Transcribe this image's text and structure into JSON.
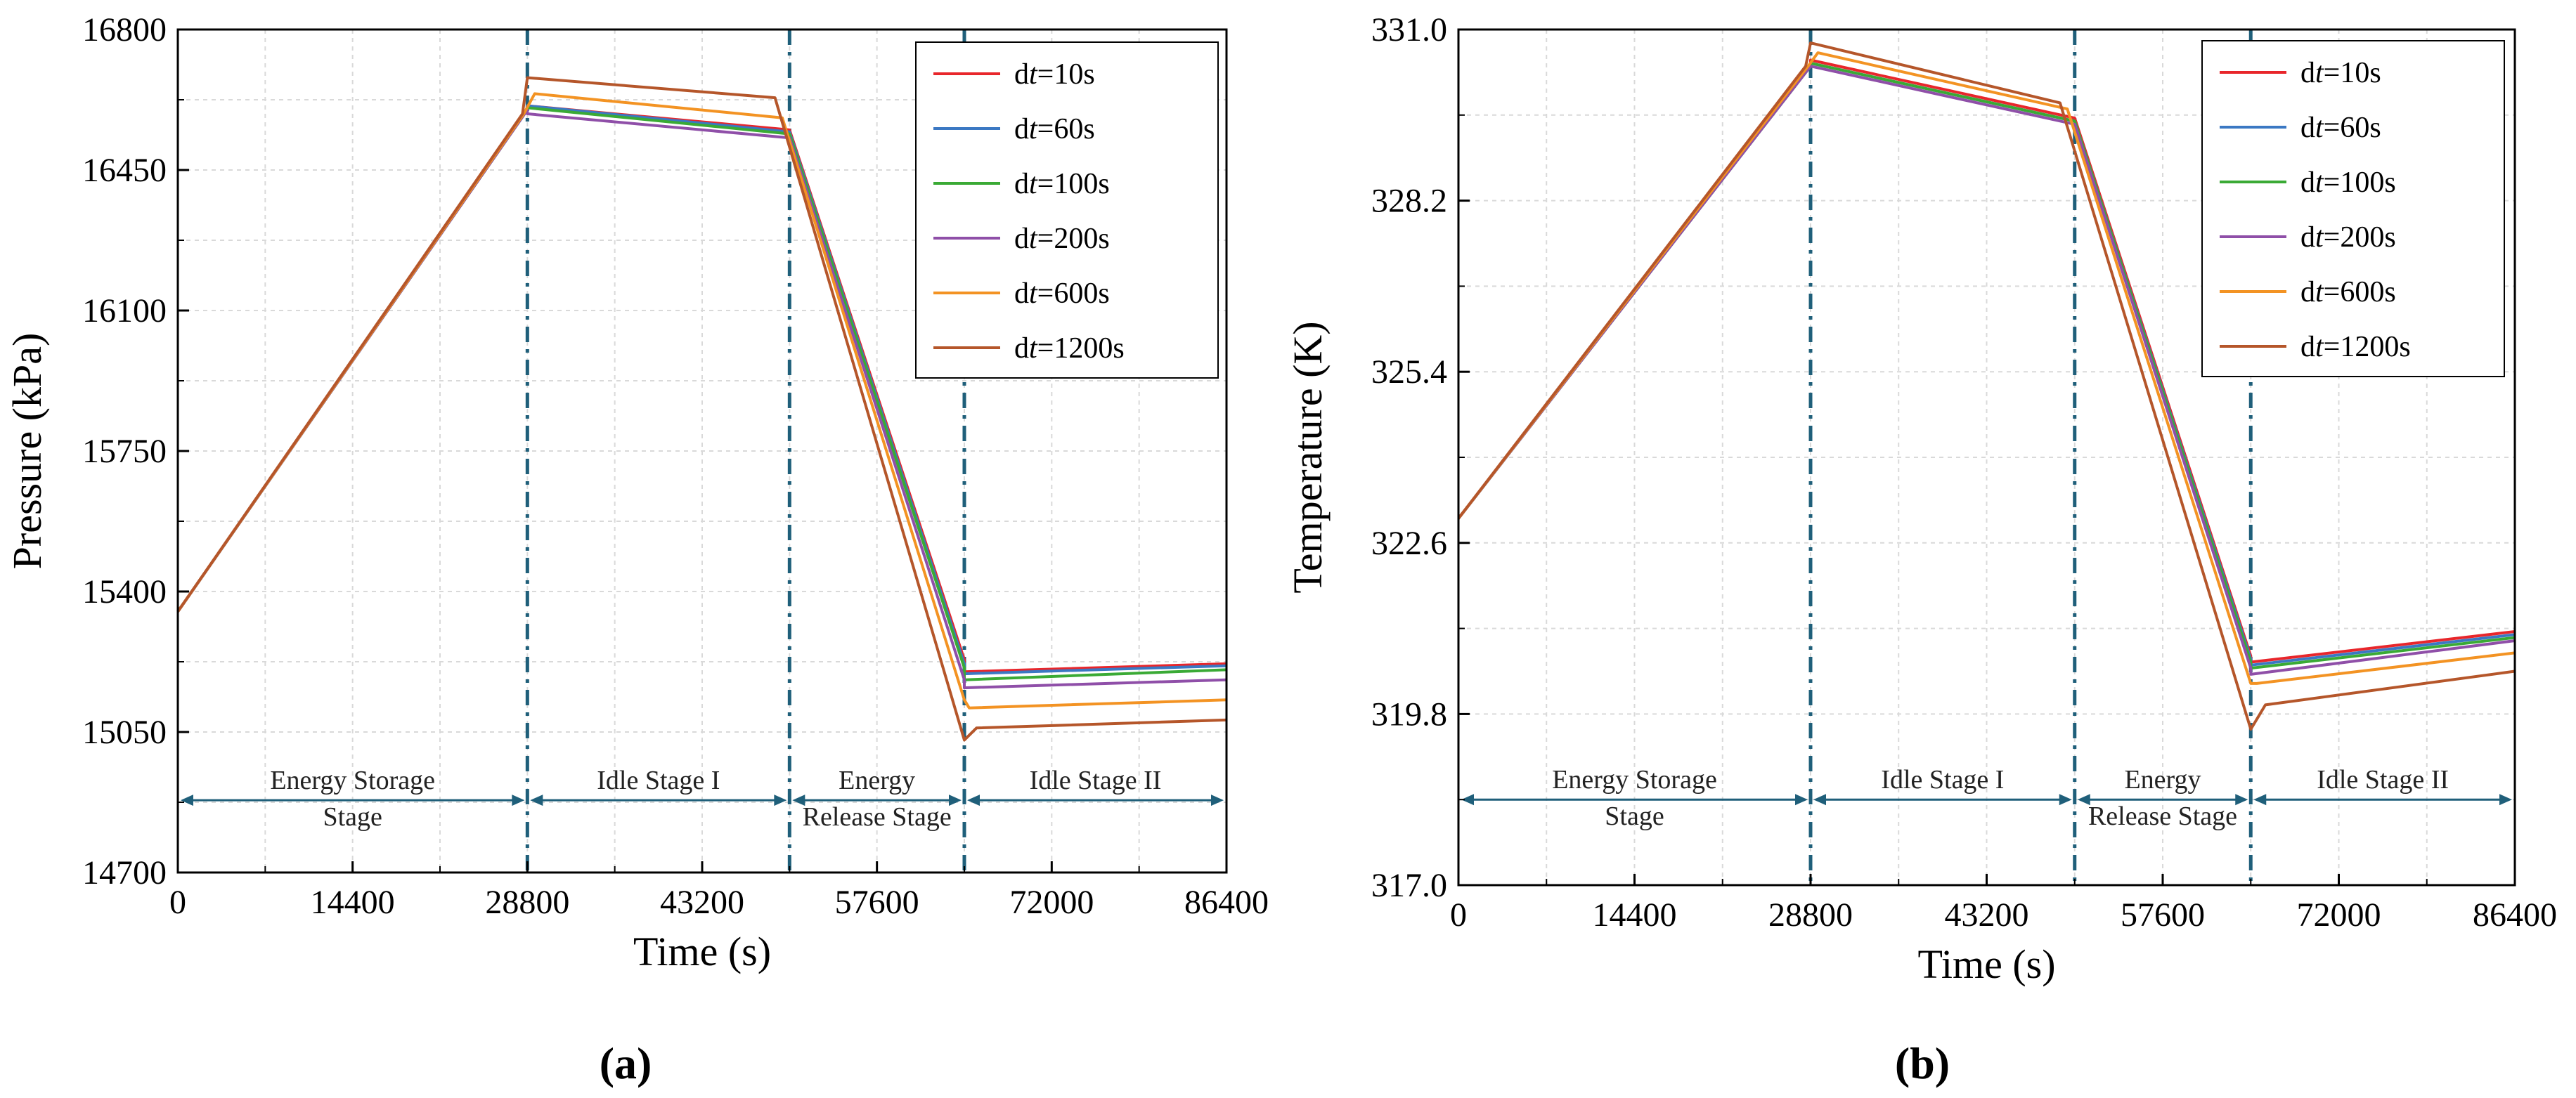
{
  "chart_data": [
    {
      "type": "line",
      "panel_label": "(a)",
      "xlabel": "Time (s)",
      "ylabel": "Pressure (kPa)",
      "xlim": [
        0,
        86400
      ],
      "ylim": [
        14700,
        16800
      ],
      "xticks": [
        "0",
        "14400",
        "28800",
        "43200",
        "57600",
        "72000",
        "86400"
      ],
      "yticks": [
        "14700",
        "15050",
        "15400",
        "15750",
        "16100",
        "16450",
        "16800"
      ],
      "stage_boundaries": [
        28800,
        50400,
        64800
      ],
      "stages": [
        {
          "lines": [
            "Energy Storage",
            "Stage"
          ],
          "x_start": 0,
          "x_end": 28800
        },
        {
          "lines": [
            "Idle Stage I"
          ],
          "x_start": 28800,
          "x_end": 50400
        },
        {
          "lines": [
            "Energy",
            "Release Stage"
          ],
          "x_start": 50400,
          "x_end": 64800
        },
        {
          "lines": [
            "Idle Stage II"
          ],
          "x_start": 64800,
          "x_end": 86400
        }
      ],
      "stage_arrow_y": 14880,
      "legend": {
        "position": "top-right"
      },
      "series": [
        {
          "prefix": "d",
          "var": "t",
          "suffix": "=10s",
          "color": "#e8262b",
          "points": [
            [
              0,
              15350
            ],
            [
              28800,
              16600
            ],
            [
              28800,
              16610
            ],
            [
              50400,
              16550
            ],
            [
              64800,
              15230
            ],
            [
              64800,
              15200
            ],
            [
              86400,
              15220
            ]
          ]
        },
        {
          "prefix": "d",
          "var": "t",
          "suffix": "=60s",
          "color": "#3b78c3",
          "points": [
            [
              0,
              15350
            ],
            [
              28800,
              16600
            ],
            [
              28800,
              16610
            ],
            [
              50400,
              16545
            ],
            [
              64800,
              15220
            ],
            [
              64800,
              15195
            ],
            [
              86400,
              15215
            ]
          ]
        },
        {
          "prefix": "d",
          "var": "t",
          "suffix": "=100s",
          "color": "#3aaa35",
          "points": [
            [
              0,
              15350
            ],
            [
              28800,
              16600
            ],
            [
              28800,
              16605
            ],
            [
              50400,
              16540
            ],
            [
              64800,
              15210
            ],
            [
              64800,
              15180
            ],
            [
              86400,
              15205
            ]
          ]
        },
        {
          "prefix": "d",
          "var": "t",
          "suffix": "=200s",
          "color": "#8f4fa8",
          "points": [
            [
              0,
              15350
            ],
            [
              28800,
              16600
            ],
            [
              28800,
              16590
            ],
            [
              50400,
              16530
            ],
            [
              64800,
              15180
            ],
            [
              64800,
              15160
            ],
            [
              86400,
              15180
            ]
          ]
        },
        {
          "prefix": "d",
          "var": "t",
          "suffix": "=600s",
          "color": "#f39323",
          "points": [
            [
              0,
              15350
            ],
            [
              28500,
              16590
            ],
            [
              29400,
              16640
            ],
            [
              49800,
              16580
            ],
            [
              64800,
              15130
            ],
            [
              65200,
              15110
            ],
            [
              86400,
              15130
            ]
          ]
        },
        {
          "prefix": "d",
          "var": "t",
          "suffix": "=1200s",
          "color": "#b5562a",
          "points": [
            [
              0,
              15350
            ],
            [
              28400,
              16590
            ],
            [
              28800,
              16680
            ],
            [
              49200,
              16630
            ],
            [
              64800,
              15030
            ],
            [
              65800,
              15060
            ],
            [
              86400,
              15080
            ]
          ]
        }
      ]
    },
    {
      "type": "line",
      "panel_label": "(b)",
      "xlabel": "Time (s)",
      "ylabel": "Temperature (K)",
      "xlim": [
        0,
        86400
      ],
      "ylim": [
        317.0,
        331.0
      ],
      "xticks": [
        "0",
        "14400",
        "28800",
        "43200",
        "57600",
        "72000",
        "86400"
      ],
      "yticks": [
        "317.0",
        "319.8",
        "322.6",
        "325.4",
        "328.2",
        "331.0"
      ],
      "stage_boundaries": [
        28800,
        50400,
        64800
      ],
      "stages": [
        {
          "lines": [
            "Energy Storage",
            "Stage"
          ],
          "x_start": 0,
          "x_end": 28800
        },
        {
          "lines": [
            "Idle Stage I"
          ],
          "x_start": 28800,
          "x_end": 50400
        },
        {
          "lines": [
            "Energy",
            "Release Stage"
          ],
          "x_start": 50400,
          "x_end": 64800
        },
        {
          "lines": [
            "Idle Stage II"
          ],
          "x_start": 64800,
          "x_end": 86400
        }
      ],
      "stage_arrow_y": 318.4,
      "legend": {
        "position": "top-right"
      },
      "series": [
        {
          "prefix": "d",
          "var": "t",
          "suffix": "=10s",
          "color": "#e8262b",
          "points": [
            [
              0,
              323.0
            ],
            [
              28800,
              330.4
            ],
            [
              28800,
              330.5
            ],
            [
              50400,
              329.55
            ],
            [
              64800,
              320.75
            ],
            [
              64800,
              320.65
            ],
            [
              86400,
              321.15
            ]
          ]
        },
        {
          "prefix": "d",
          "var": "t",
          "suffix": "=60s",
          "color": "#3b78c3",
          "points": [
            [
              0,
              323.0
            ],
            [
              28800,
              330.4
            ],
            [
              28800,
              330.45
            ],
            [
              50400,
              329.5
            ],
            [
              64800,
              320.7
            ],
            [
              64800,
              320.6
            ],
            [
              86400,
              321.1
            ]
          ]
        },
        {
          "prefix": "d",
          "var": "t",
          "suffix": "=100s",
          "color": "#3aaa35",
          "points": [
            [
              0,
              323.0
            ],
            [
              28800,
              330.4
            ],
            [
              28800,
              330.45
            ],
            [
              50400,
              329.5
            ],
            [
              64800,
              320.65
            ],
            [
              64800,
              320.55
            ],
            [
              86400,
              321.05
            ]
          ]
        },
        {
          "prefix": "d",
          "var": "t",
          "suffix": "=200s",
          "color": "#8f4fa8",
          "points": [
            [
              0,
              323.0
            ],
            [
              28800,
              330.4
            ],
            [
              28800,
              330.4
            ],
            [
              50400,
              329.45
            ],
            [
              64800,
              320.55
            ],
            [
              64800,
              320.45
            ],
            [
              86400,
              321.0
            ]
          ]
        },
        {
          "prefix": "d",
          "var": "t",
          "suffix": "=600s",
          "color": "#f39323",
          "points": [
            [
              0,
              323.0
            ],
            [
              28600,
              330.4
            ],
            [
              29400,
              330.62
            ],
            [
              49800,
              329.7
            ],
            [
              64800,
              320.3
            ],
            [
              65300,
              320.3
            ],
            [
              86400,
              320.8
            ]
          ]
        },
        {
          "prefix": "d",
          "var": "t",
          "suffix": "=1200s",
          "color": "#b5562a",
          "points": [
            [
              0,
              323.0
            ],
            [
              28400,
              330.4
            ],
            [
              28800,
              330.78
            ],
            [
              49200,
              329.8
            ],
            [
              64800,
              319.55
            ],
            [
              66000,
              319.95
            ],
            [
              86400,
              320.5
            ]
          ]
        }
      ]
    }
  ]
}
